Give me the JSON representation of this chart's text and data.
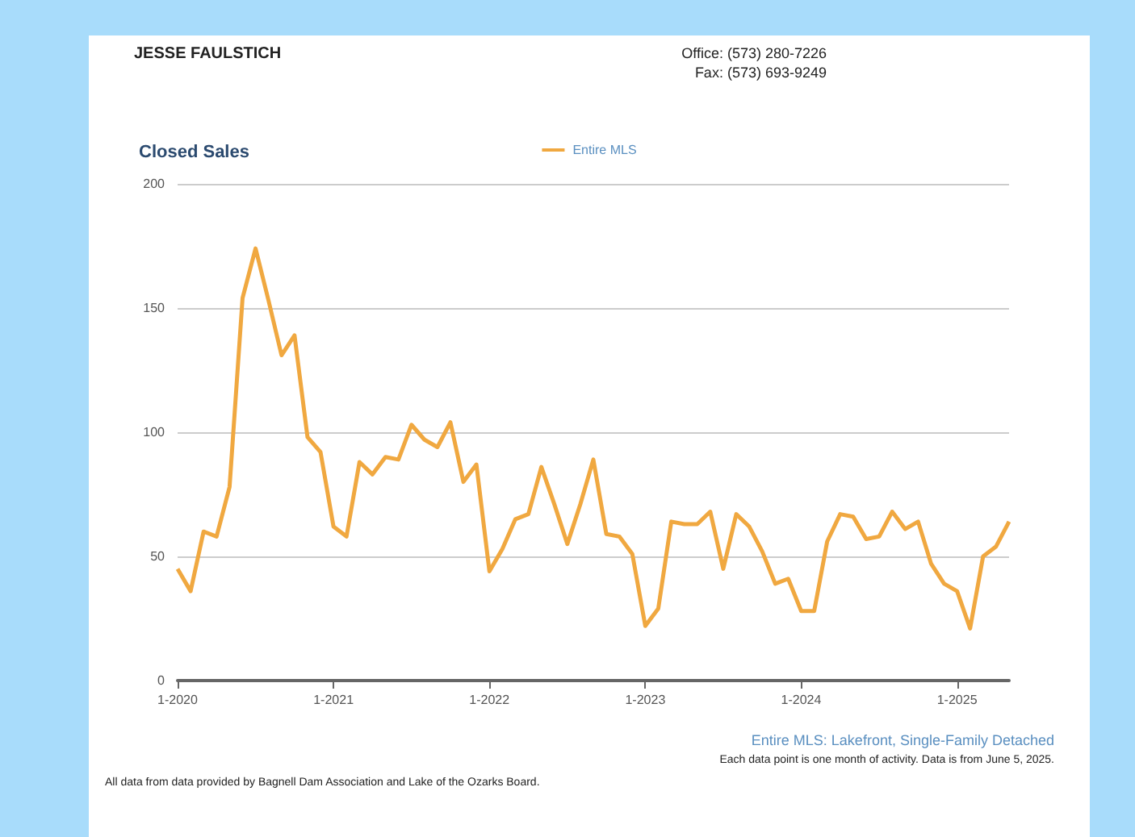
{
  "chart_data": {
    "type": "line",
    "title": "Closed Sales",
    "categories": [
      "1-2020",
      null,
      null,
      null,
      null,
      null,
      null,
      null,
      null,
      null,
      null,
      null,
      "1-2021",
      null,
      null,
      null,
      null,
      null,
      null,
      null,
      null,
      null,
      null,
      null,
      "1-2022",
      null,
      null,
      null,
      null,
      null,
      null,
      null,
      null,
      null,
      null,
      null,
      "1-2023",
      null,
      null,
      null,
      null,
      null,
      null,
      null,
      null,
      null,
      null,
      null,
      "1-2024",
      null,
      null,
      null,
      null,
      null,
      null,
      null,
      null,
      null,
      null,
      null,
      "1-2025",
      null,
      null,
      null,
      null
    ],
    "series": [
      {
        "name": "Entire MLS",
        "color": "#f0a840",
        "values": [
          45,
          36,
          60,
          58,
          78,
          154,
          174,
          153,
          131,
          139,
          98,
          92,
          62,
          58,
          88,
          83,
          90,
          89,
          103,
          97,
          94,
          104,
          80,
          87,
          44,
          53,
          65,
          67,
          86,
          71,
          55,
          71,
          89,
          59,
          58,
          51,
          22,
          29,
          64,
          63,
          63,
          68,
          45,
          67,
          62,
          52,
          39,
          41,
          28,
          28,
          56,
          67,
          66,
          57,
          58,
          68,
          61,
          64,
          47,
          39,
          36,
          21,
          50,
          54,
          64
        ]
      }
    ],
    "ylim": [
      0,
      200
    ],
    "yticks": [
      0,
      50,
      100,
      150,
      200
    ],
    "grid": "y",
    "legend": "top",
    "marker": "none",
    "line_style": "solid",
    "annotations": [
      "JESSE FAULSTICH",
      "Office: (573) 280-7226",
      "Fax: (573) 693-9249",
      "Entire MLS: Lakefront, Single-Family Detached",
      "Each data point is one month of activity. Data is from June 5, 2025.",
      "All data from data provided by Bagnell Dam Association and Lake of the Ozarks Board."
    ]
  }
}
